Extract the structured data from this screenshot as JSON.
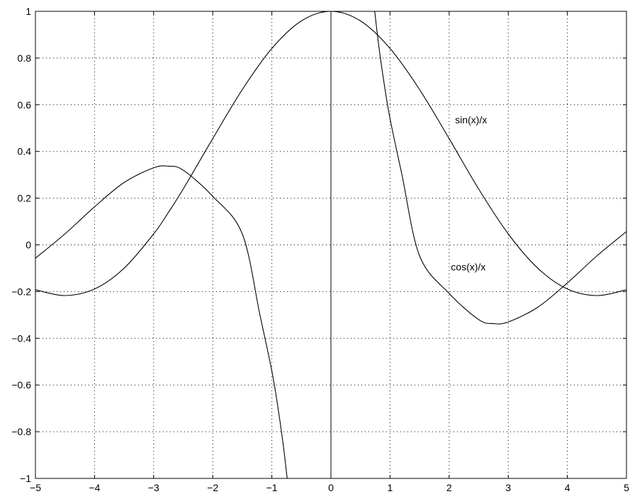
{
  "chart_data": {
    "type": "line",
    "xlim": [
      -5,
      5
    ],
    "ylim": [
      -1,
      1
    ],
    "grid": true,
    "x_ticks": [
      -5,
      -4,
      -3,
      -2,
      -1,
      0,
      1,
      2,
      3,
      4,
      5
    ],
    "y_ticks": [
      -1,
      -0.8,
      -0.6,
      -0.4,
      -0.2,
      0,
      0.2,
      0.4,
      0.6,
      0.8,
      1
    ],
    "x_tick_labels": [
      "−5",
      "−4",
      "−3",
      "−2",
      "−1",
      "0",
      "1",
      "2",
      "3",
      "4",
      "5"
    ],
    "y_tick_labels": [
      "−1",
      "−0.8",
      "−0.6",
      "−0.4",
      "−0.2",
      "0",
      "0.2",
      "0.4",
      "0.6",
      "0.8",
      "1"
    ],
    "annotations": [
      {
        "text": "sin(x)/x",
        "x": 2.1,
        "y": 0.52
      },
      {
        "text": "cos(x)/x",
        "x": 2.03,
        "y": -0.11
      }
    ],
    "series": [
      {
        "x": [
          -5,
          -4.5,
          -4,
          -3.5,
          -3,
          -2.75,
          -2.5,
          -2,
          -1.5,
          -1,
          -0.5,
          0,
          0.5,
          1,
          1.5,
          2,
          2.5,
          3,
          3.5,
          4,
          4.5,
          5
        ],
        "y": [
          -0.192,
          -0.217,
          -0.189,
          -0.1,
          0.047,
          0.139,
          0.239,
          0.455,
          0.665,
          0.841,
          0.959,
          1.0,
          0.959,
          0.841,
          0.665,
          0.455,
          0.239,
          0.047,
          -0.1,
          -0.189,
          -0.217,
          -0.192
        ]
      },
      {
        "x": [
          -5,
          -4.5,
          -4,
          -3.5,
          -3,
          -2.75,
          -2.5,
          -2,
          -1.5,
          -1.2,
          -1,
          -0.9,
          -0.8,
          -0.7,
          0.7,
          0.8,
          0.9,
          1,
          1.2,
          1.5,
          2,
          2.5,
          2.75,
          3,
          3.5,
          4,
          4.5,
          5
        ],
        "y": [
          -0.057,
          0.047,
          0.163,
          0.267,
          0.33,
          0.337,
          0.32,
          0.208,
          0.047,
          -0.302,
          -0.54,
          -0.691,
          -0.871,
          -1.093,
          1.093,
          0.871,
          0.691,
          0.54,
          0.302,
          -0.047,
          -0.208,
          -0.32,
          -0.337,
          -0.33,
          -0.267,
          -0.163,
          -0.047,
          0.057
        ]
      }
    ]
  }
}
